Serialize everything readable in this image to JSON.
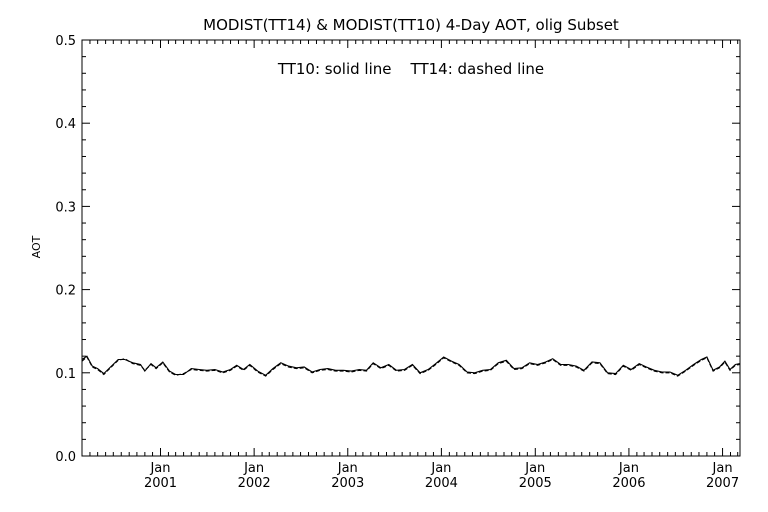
{
  "chart_data": {
    "type": "line",
    "title": "MODIST(TT14) & MODIST(TT10) 4-Day AOT, olig Subset",
    "annotation": "TT10: solid line    TT14: dashed line",
    "xlabel": "",
    "ylabel": "AOT",
    "xlim": [
      "2000-03-01",
      "2007-03-10"
    ],
    "ylim": [
      0.0,
      0.5
    ],
    "yticks": [
      "0.0",
      "0.1",
      "0.2",
      "0.3",
      "0.4",
      "0.5"
    ],
    "xticks": [
      {
        "month": "Jan",
        "year": "2001",
        "date": "2001-01-01"
      },
      {
        "month": "Jan",
        "year": "2002",
        "date": "2002-01-01"
      },
      {
        "month": "Jan",
        "year": "2003",
        "date": "2003-01-01"
      },
      {
        "month": "Jan",
        "year": "2004",
        "date": "2004-01-01"
      },
      {
        "month": "Jan",
        "year": "2005",
        "date": "2005-01-01"
      },
      {
        "month": "Jan",
        "year": "2006",
        "date": "2006-01-01"
      },
      {
        "month": "Jan",
        "year": "2007",
        "date": "2007-01-01"
      }
    ],
    "grid": false,
    "series": [
      {
        "name": "TT10",
        "style": "solid",
        "points": [
          [
            "2000-03-01",
            0.116
          ],
          [
            "2000-03-20",
            0.12
          ],
          [
            "2000-04-10",
            0.108
          ],
          [
            "2000-05-01",
            0.105
          ],
          [
            "2000-05-25",
            0.099
          ],
          [
            "2000-06-20",
            0.107
          ],
          [
            "2000-07-20",
            0.116
          ],
          [
            "2000-08-15",
            0.116
          ],
          [
            "2000-09-15",
            0.112
          ],
          [
            "2000-10-15",
            0.11
          ],
          [
            "2000-11-01",
            0.102
          ],
          [
            "2000-11-25",
            0.111
          ],
          [
            "2000-12-15",
            0.106
          ],
          [
            "2001-01-10",
            0.113
          ],
          [
            "2001-02-05",
            0.102
          ],
          [
            "2001-03-01",
            0.098
          ],
          [
            "2001-04-01",
            0.098
          ],
          [
            "2001-05-01",
            0.105
          ],
          [
            "2001-06-01",
            0.104
          ],
          [
            "2001-07-01",
            0.103
          ],
          [
            "2001-08-01",
            0.104
          ],
          [
            "2001-09-01",
            0.101
          ],
          [
            "2001-10-01",
            0.104
          ],
          [
            "2001-10-25",
            0.109
          ],
          [
            "2001-11-20",
            0.104
          ],
          [
            "2001-12-15",
            0.11
          ],
          [
            "2002-01-15",
            0.102
          ],
          [
            "2002-02-15",
            0.097
          ],
          [
            "2002-03-15",
            0.105
          ],
          [
            "2002-04-15",
            0.112
          ],
          [
            "2002-05-15",
            0.108
          ],
          [
            "2002-06-15",
            0.106
          ],
          [
            "2002-07-15",
            0.107
          ],
          [
            "2002-08-15",
            0.101
          ],
          [
            "2002-09-15",
            0.104
          ],
          [
            "2002-10-15",
            0.105
          ],
          [
            "2002-11-15",
            0.103
          ],
          [
            "2002-12-15",
            0.103
          ],
          [
            "2003-01-15",
            0.102
          ],
          [
            "2003-02-15",
            0.104
          ],
          [
            "2003-03-15",
            0.103
          ],
          [
            "2003-04-10",
            0.112
          ],
          [
            "2003-05-10",
            0.106
          ],
          [
            "2003-06-10",
            0.11
          ],
          [
            "2003-07-10",
            0.103
          ],
          [
            "2003-08-10",
            0.104
          ],
          [
            "2003-09-10",
            0.11
          ],
          [
            "2003-10-10",
            0.1
          ],
          [
            "2003-11-10",
            0.104
          ],
          [
            "2003-12-10",
            0.111
          ],
          [
            "2004-01-10",
            0.119
          ],
          [
            "2004-02-10",
            0.114
          ],
          [
            "2004-03-10",
            0.11
          ],
          [
            "2004-04-10",
            0.101
          ],
          [
            "2004-05-10",
            0.1
          ],
          [
            "2004-06-10",
            0.103
          ],
          [
            "2004-07-10",
            0.104
          ],
          [
            "2004-08-10",
            0.112
          ],
          [
            "2004-09-10",
            0.115
          ],
          [
            "2004-10-10",
            0.105
          ],
          [
            "2004-11-10",
            0.106
          ],
          [
            "2004-12-10",
            0.112
          ],
          [
            "2005-01-10",
            0.11
          ],
          [
            "2005-02-10",
            0.113
          ],
          [
            "2005-03-10",
            0.117
          ],
          [
            "2005-04-10",
            0.11
          ],
          [
            "2005-05-10",
            0.11
          ],
          [
            "2005-06-10",
            0.108
          ],
          [
            "2005-07-10",
            0.103
          ],
          [
            "2005-08-10",
            0.113
          ],
          [
            "2005-09-10",
            0.112
          ],
          [
            "2005-10-10",
            0.1
          ],
          [
            "2005-11-10",
            0.099
          ],
          [
            "2005-12-10",
            0.109
          ],
          [
            "2006-01-10",
            0.104
          ],
          [
            "2006-02-10",
            0.111
          ],
          [
            "2006-03-10",
            0.107
          ],
          [
            "2006-04-10",
            0.103
          ],
          [
            "2006-05-10",
            0.101
          ],
          [
            "2006-06-10",
            0.101
          ],
          [
            "2006-07-10",
            0.097
          ],
          [
            "2006-08-10",
            0.103
          ],
          [
            "2006-09-10",
            0.11
          ],
          [
            "2006-10-10",
            0.116
          ],
          [
            "2006-11-01",
            0.119
          ],
          [
            "2006-11-25",
            0.103
          ],
          [
            "2006-12-20",
            0.107
          ],
          [
            "2007-01-10",
            0.114
          ],
          [
            "2007-01-30",
            0.104
          ],
          [
            "2007-02-20",
            0.11
          ],
          [
            "2007-03-10",
            0.111
          ]
        ]
      },
      {
        "name": "TT14",
        "style": "dashed",
        "points": [
          [
            "2000-03-01",
            0.114
          ],
          [
            "2000-03-20",
            0.119
          ],
          [
            "2000-04-10",
            0.107
          ],
          [
            "2000-05-01",
            0.104
          ],
          [
            "2000-05-25",
            0.098
          ],
          [
            "2000-06-20",
            0.106
          ],
          [
            "2000-07-20",
            0.115
          ],
          [
            "2000-08-15",
            0.117
          ],
          [
            "2000-09-15",
            0.111
          ],
          [
            "2000-10-15",
            0.109
          ],
          [
            "2000-11-01",
            0.103
          ],
          [
            "2000-11-25",
            0.11
          ],
          [
            "2000-12-15",
            0.105
          ],
          [
            "2001-01-10",
            0.112
          ],
          [
            "2001-02-05",
            0.101
          ],
          [
            "2001-03-01",
            0.097
          ],
          [
            "2001-04-01",
            0.099
          ],
          [
            "2001-05-01",
            0.104
          ],
          [
            "2001-06-01",
            0.103
          ],
          [
            "2001-07-01",
            0.102
          ],
          [
            "2001-08-01",
            0.103
          ],
          [
            "2001-09-01",
            0.1
          ],
          [
            "2001-10-01",
            0.103
          ],
          [
            "2001-10-25",
            0.108
          ],
          [
            "2001-11-20",
            0.103
          ],
          [
            "2001-12-15",
            0.109
          ],
          [
            "2002-01-15",
            0.101
          ],
          [
            "2002-02-15",
            0.096
          ],
          [
            "2002-03-15",
            0.104
          ],
          [
            "2002-04-15",
            0.111
          ],
          [
            "2002-05-15",
            0.107
          ],
          [
            "2002-06-15",
            0.105
          ],
          [
            "2002-07-15",
            0.106
          ],
          [
            "2002-08-15",
            0.1
          ],
          [
            "2002-09-15",
            0.103
          ],
          [
            "2002-10-15",
            0.104
          ],
          [
            "2002-11-15",
            0.102
          ],
          [
            "2002-12-15",
            0.102
          ],
          [
            "2003-01-15",
            0.101
          ],
          [
            "2003-02-15",
            0.103
          ],
          [
            "2003-03-15",
            0.102
          ],
          [
            "2003-04-10",
            0.111
          ],
          [
            "2003-05-10",
            0.105
          ],
          [
            "2003-06-10",
            0.109
          ],
          [
            "2003-07-10",
            0.102
          ],
          [
            "2003-08-10",
            0.103
          ],
          [
            "2003-09-10",
            0.109
          ],
          [
            "2003-10-10",
            0.099
          ],
          [
            "2003-11-10",
            0.103
          ],
          [
            "2003-12-10",
            0.11
          ],
          [
            "2004-01-10",
            0.118
          ],
          [
            "2004-02-10",
            0.113
          ],
          [
            "2004-03-10",
            0.109
          ],
          [
            "2004-04-10",
            0.1
          ],
          [
            "2004-05-10",
            0.099
          ],
          [
            "2004-06-10",
            0.102
          ],
          [
            "2004-07-10",
            0.103
          ],
          [
            "2004-08-10",
            0.111
          ],
          [
            "2004-09-10",
            0.114
          ],
          [
            "2004-10-10",
            0.104
          ],
          [
            "2004-11-10",
            0.105
          ],
          [
            "2004-12-10",
            0.111
          ],
          [
            "2005-01-10",
            0.109
          ],
          [
            "2005-02-10",
            0.112
          ],
          [
            "2005-03-10",
            0.116
          ],
          [
            "2005-04-10",
            0.109
          ],
          [
            "2005-05-10",
            0.109
          ],
          [
            "2005-06-10",
            0.107
          ],
          [
            "2005-07-10",
            0.102
          ],
          [
            "2005-08-10",
            0.112
          ],
          [
            "2005-09-10",
            0.111
          ],
          [
            "2005-10-10",
            0.099
          ],
          [
            "2005-11-10",
            0.098
          ],
          [
            "2005-12-10",
            0.108
          ],
          [
            "2006-01-10",
            0.103
          ],
          [
            "2006-02-10",
            0.11
          ],
          [
            "2006-03-10",
            0.106
          ],
          [
            "2006-04-10",
            0.102
          ],
          [
            "2006-05-10",
            0.1
          ],
          [
            "2006-06-10",
            0.1
          ],
          [
            "2006-07-10",
            0.096
          ],
          [
            "2006-08-10",
            0.102
          ],
          [
            "2006-09-10",
            0.109
          ],
          [
            "2006-10-10",
            0.115
          ],
          [
            "2006-11-01",
            0.118
          ],
          [
            "2006-11-25",
            0.102
          ],
          [
            "2006-12-20",
            0.106
          ],
          [
            "2007-01-10",
            0.113
          ],
          [
            "2007-01-30",
            0.103
          ],
          [
            "2007-02-20",
            0.109
          ],
          [
            "2007-03-10",
            0.11
          ]
        ]
      }
    ]
  }
}
